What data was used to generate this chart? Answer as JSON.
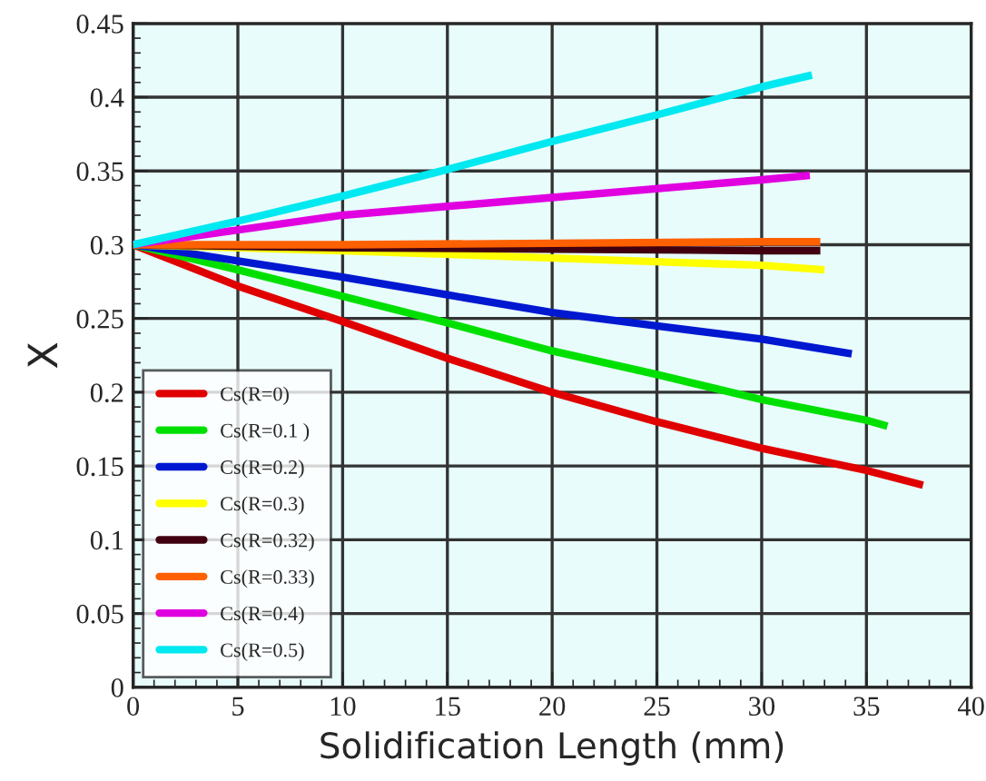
{
  "chart_data": {
    "type": "line",
    "xlabel": "Solidification Length (mm)",
    "ylabel": "X",
    "xlim": [
      0,
      40
    ],
    "ylim": [
      0,
      0.45
    ],
    "xticks": [
      0,
      5,
      10,
      15,
      20,
      25,
      30,
      35,
      40
    ],
    "yticks": [
      0,
      0.05,
      0.1,
      0.15,
      0.2,
      0.25,
      0.3,
      0.35,
      0.4,
      0.45
    ],
    "grid": true,
    "legend": "bottom left",
    "marker": "none",
    "line_style": "solid",
    "series": [
      {
        "name": "Cs(R=0)",
        "color": "#e00000",
        "x": [
          0,
          5,
          10,
          15,
          20,
          25,
          30,
          35,
          37.7
        ],
        "values": [
          0.3,
          0.272,
          0.248,
          0.223,
          0.2,
          0.18,
          0.162,
          0.147,
          0.137
        ]
      },
      {
        "name": "Cs(R=0.1 )",
        "color": "#00e000",
        "x": [
          0,
          5,
          10,
          15,
          20,
          25,
          30,
          35,
          36
        ],
        "values": [
          0.3,
          0.283,
          0.265,
          0.247,
          0.228,
          0.212,
          0.195,
          0.181,
          0.177
        ]
      },
      {
        "name": "Cs(R=0.2)",
        "color": "#0018d0",
        "x": [
          0,
          5,
          10,
          15,
          20,
          25,
          30,
          34.3
        ],
        "values": [
          0.3,
          0.289,
          0.278,
          0.266,
          0.254,
          0.245,
          0.236,
          0.226
        ]
      },
      {
        "name": "Cs(R=0.3)",
        "color": "#ffff00",
        "x": [
          0,
          10,
          20,
          30,
          33
        ],
        "values": [
          0.3,
          0.296,
          0.291,
          0.286,
          0.283
        ]
      },
      {
        "name": "Cs(R=0.32)",
        "color": "#400010",
        "x": [
          0,
          10,
          20,
          30,
          32.8
        ],
        "values": [
          0.3,
          0.298,
          0.297,
          0.296,
          0.296
        ]
      },
      {
        "name": "Cs(R=0.33)",
        "color": "#ff6000",
        "x": [
          0,
          10,
          20,
          30,
          32.8
        ],
        "values": [
          0.3,
          0.3,
          0.301,
          0.302,
          0.302
        ]
      },
      {
        "name": "Cs(R=0.4)",
        "color": "#e000e0",
        "x": [
          0,
          10,
          20,
          30,
          32.3
        ],
        "values": [
          0.3,
          0.32,
          0.332,
          0.344,
          0.347
        ]
      },
      {
        "name": "Cs(R=0.5)",
        "color": "#00e8f0",
        "x": [
          0,
          5,
          10,
          15,
          20,
          25,
          30,
          32.4
        ],
        "values": [
          0.3,
          0.316,
          0.333,
          0.351,
          0.37,
          0.388,
          0.407,
          0.415
        ]
      }
    ]
  }
}
